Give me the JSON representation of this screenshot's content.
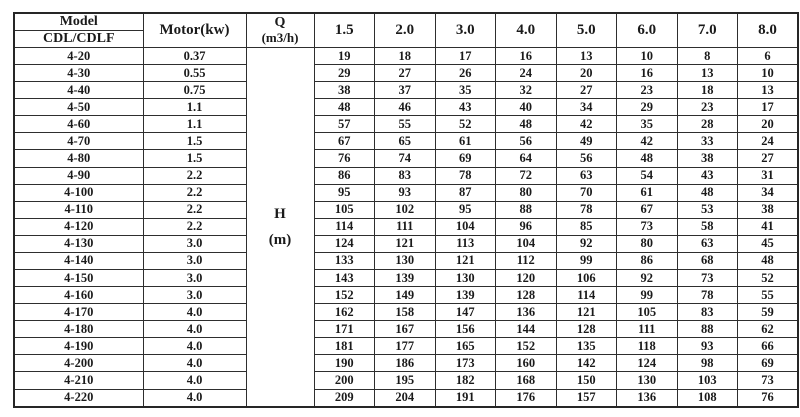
{
  "colors": {
    "background": "#ffffff",
    "text": "#1a1a1a",
    "border": "#2e2e2e"
  },
  "table": {
    "header": {
      "model_label": "Model",
      "model_sub_label": "CDL/CDLF",
      "motor_label": "Motor(kw)",
      "q_line1": "Q",
      "q_line2": "(m3/h)",
      "flow_columns": [
        "1.5",
        "2.0",
        "3.0",
        "4.0",
        "5.0",
        "6.0",
        "7.0",
        "8.0"
      ]
    },
    "head_unit": {
      "line1": "H",
      "line2": "(m)"
    },
    "rows": [
      {
        "model": "4-20",
        "motor": "0.37",
        "values": [
          "19",
          "18",
          "17",
          "16",
          "13",
          "10",
          "8",
          "6"
        ]
      },
      {
        "model": "4-30",
        "motor": "0.55",
        "values": [
          "29",
          "27",
          "26",
          "24",
          "20",
          "16",
          "13",
          "10"
        ]
      },
      {
        "model": "4-40",
        "motor": "0.75",
        "values": [
          "38",
          "37",
          "35",
          "32",
          "27",
          "23",
          "18",
          "13"
        ]
      },
      {
        "model": "4-50",
        "motor": "1.1",
        "values": [
          "48",
          "46",
          "43",
          "40",
          "34",
          "29",
          "23",
          "17"
        ]
      },
      {
        "model": "4-60",
        "motor": "1.1",
        "values": [
          "57",
          "55",
          "52",
          "48",
          "42",
          "35",
          "28",
          "20"
        ]
      },
      {
        "model": "4-70",
        "motor": "1.5",
        "values": [
          "67",
          "65",
          "61",
          "56",
          "49",
          "42",
          "33",
          "24"
        ]
      },
      {
        "model": "4-80",
        "motor": "1.5",
        "values": [
          "76",
          "74",
          "69",
          "64",
          "56",
          "48",
          "38",
          "27"
        ]
      },
      {
        "model": "4-90",
        "motor": "2.2",
        "values": [
          "86",
          "83",
          "78",
          "72",
          "63",
          "54",
          "43",
          "31"
        ]
      },
      {
        "model": "4-100",
        "motor": "2.2",
        "values": [
          "95",
          "93",
          "87",
          "80",
          "70",
          "61",
          "48",
          "34"
        ]
      },
      {
        "model": "4-110",
        "motor": "2.2",
        "values": [
          "105",
          "102",
          "95",
          "88",
          "78",
          "67",
          "53",
          "38"
        ]
      },
      {
        "model": "4-120",
        "motor": "2.2",
        "values": [
          "114",
          "111",
          "104",
          "96",
          "85",
          "73",
          "58",
          "41"
        ]
      },
      {
        "model": "4-130",
        "motor": "3.0",
        "values": [
          "124",
          "121",
          "113",
          "104",
          "92",
          "80",
          "63",
          "45"
        ]
      },
      {
        "model": "4-140",
        "motor": "3.0",
        "values": [
          "133",
          "130",
          "121",
          "112",
          "99",
          "86",
          "68",
          "48"
        ]
      },
      {
        "model": "4-150",
        "motor": "3.0",
        "values": [
          "143",
          "139",
          "130",
          "120",
          "106",
          "92",
          "73",
          "52"
        ]
      },
      {
        "model": "4-160",
        "motor": "3.0",
        "values": [
          "152",
          "149",
          "139",
          "128",
          "114",
          "99",
          "78",
          "55"
        ]
      },
      {
        "model": "4-170",
        "motor": "4.0",
        "values": [
          "162",
          "158",
          "147",
          "136",
          "121",
          "105",
          "83",
          "59"
        ]
      },
      {
        "model": "4-180",
        "motor": "4.0",
        "values": [
          "171",
          "167",
          "156",
          "144",
          "128",
          "111",
          "88",
          "62"
        ]
      },
      {
        "model": "4-190",
        "motor": "4.0",
        "values": [
          "181",
          "177",
          "165",
          "152",
          "135",
          "118",
          "93",
          "66"
        ]
      },
      {
        "model": "4-200",
        "motor": "4.0",
        "values": [
          "190",
          "186",
          "173",
          "160",
          "142",
          "124",
          "98",
          "69"
        ]
      },
      {
        "model": "4-210",
        "motor": "4.0",
        "values": [
          "200",
          "195",
          "182",
          "168",
          "150",
          "130",
          "103",
          "73"
        ]
      },
      {
        "model": "4-220",
        "motor": "4.0",
        "values": [
          "209",
          "204",
          "191",
          "176",
          "157",
          "136",
          "108",
          "76"
        ]
      }
    ]
  }
}
